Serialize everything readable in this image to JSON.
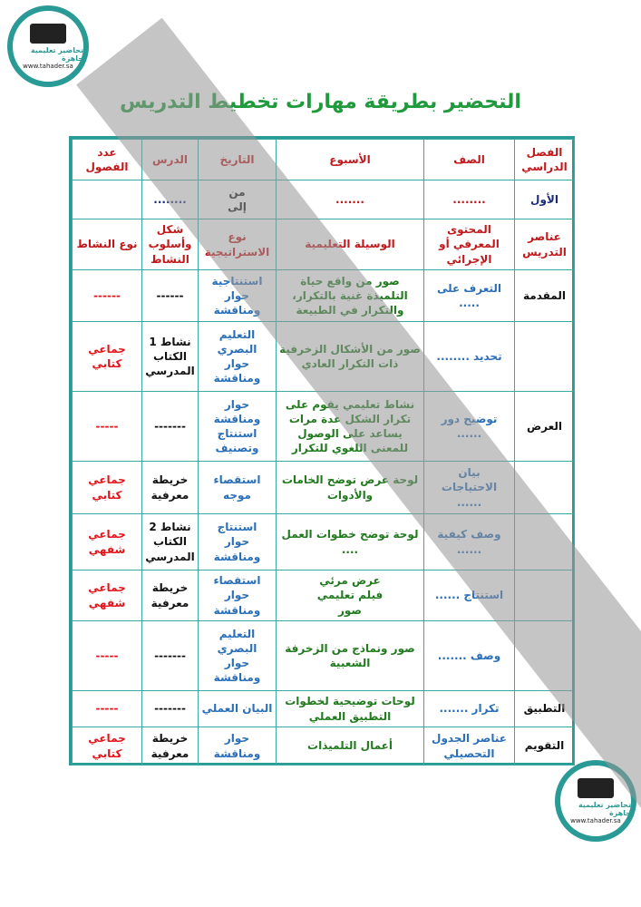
{
  "title": "التحضير بطريقة مهارات تخطيط التدريس",
  "logo": {
    "name": "تحاضير تعليمية جاهزة",
    "url": "www.tahader.sa"
  },
  "colors": {
    "accent": "#2a9a96",
    "title": "#1f9a3c",
    "header": "#c0191b",
    "strategy": "#2a6fb8",
    "media": "#227a1f",
    "activity_type": "#e3141a"
  },
  "rows": [
    [
      {
        "t": "الفصل الدراسي",
        "c": "red"
      },
      {
        "t": "الصف",
        "c": "red"
      },
      {
        "t": "الأسبوع",
        "c": "red"
      },
      {
        "t": "التاريخ",
        "c": "red"
      },
      {
        "t": "الدرس",
        "c": "red"
      },
      {
        "t": "عدد الفصول",
        "c": "red"
      }
    ],
    [
      {
        "t": "الأول",
        "c": "navy"
      },
      {
        "t": "........",
        "c": "red"
      },
      {
        "t": ".......",
        "c": "red"
      },
      {
        "t": "من\nإلى",
        "c": "dark"
      },
      {
        "t": "........",
        "c": "navy"
      },
      {
        "t": "",
        "c": "dark"
      }
    ],
    [
      {
        "t": "عناصر التدريس",
        "c": "red"
      },
      {
        "t": "المحتوى المعرفي أو الإجرائي",
        "c": "red"
      },
      {
        "t": "الوسيلة التعليمية",
        "c": "red"
      },
      {
        "t": "نوع الاستراتيجية",
        "c": "red"
      },
      {
        "t": "شكل وأسلوب النشاط",
        "c": "red"
      },
      {
        "t": "نوع النشاط",
        "c": "red"
      }
    ],
    [
      {
        "t": "المقدمة",
        "c": "dark"
      },
      {
        "t": "التعرف على\n.....",
        "c": "blue"
      },
      {
        "t": "صور من واقع حياة التلميذة غنية بالتكرار، والتكرار في الطبيعة",
        "c": "green"
      },
      {
        "t": "استنتاجية\nحوار\nومناقشة",
        "c": "blue"
      },
      {
        "t": "------",
        "c": "dark"
      },
      {
        "t": "------",
        "c": "bred"
      }
    ],
    [
      {
        "t": "",
        "c": "dark"
      },
      {
        "t": "تحديد ........",
        "c": "blue"
      },
      {
        "t": "صور من الأشكال الزخرفية ذات التكرار العادي",
        "c": "green"
      },
      {
        "t": "التعليم البصري\nحوار\nومناقشة",
        "c": "blue"
      },
      {
        "t": "نشاط 1\nالكتاب\nالمدرسي",
        "c": "dark"
      },
      {
        "t": "جماعي\nكتابي",
        "c": "bred"
      }
    ],
    [
      {
        "t": "العرض",
        "c": "dark"
      },
      {
        "t": "توضيح دور\n......",
        "c": "blue"
      },
      {
        "t": "نشاط تعليمي يقوم على تكرار الشكل عدة مرات يساعد على الوصول للمعنى اللغوي للتكرار",
        "c": "green"
      },
      {
        "t": "حوار\nومناقشة\nاستنتاج\nوتصنيف",
        "c": "blue"
      },
      {
        "t": "-------",
        "c": "dark"
      },
      {
        "t": "-----",
        "c": "bred"
      }
    ],
    [
      {
        "t": "",
        "c": "dark"
      },
      {
        "t": "بيان\nالاحتياجات\n......",
        "c": "blue"
      },
      {
        "t": "لوحة عرض توضح الخامات والأدوات",
        "c": "green"
      },
      {
        "t": "استقصاء\nموجه",
        "c": "blue"
      },
      {
        "t": "خريطة\nمعرفية",
        "c": "dark"
      },
      {
        "t": "جماعي\nكتابي",
        "c": "bred"
      }
    ],
    [
      {
        "t": "",
        "c": "dark"
      },
      {
        "t": "وصف كيفية\n......",
        "c": "blue"
      },
      {
        "t": "لوحة توضح خطوات العمل\n....",
        "c": "green"
      },
      {
        "t": "استنتاج\nحوار\nومناقشة",
        "c": "blue"
      },
      {
        "t": "نشاط 2\nالكتاب\nالمدرسي",
        "c": "dark"
      },
      {
        "t": "جماعي\nشفهي",
        "c": "bred"
      }
    ],
    [
      {
        "t": "",
        "c": "dark"
      },
      {
        "t": "استنتاج ......",
        "c": "blue"
      },
      {
        "t": "عرض مرئي\nفيلم تعليمي\nصور",
        "c": "green"
      },
      {
        "t": "استقصاء\nحوار\nومناقشة",
        "c": "blue"
      },
      {
        "t": "خريطة\nمعرفية",
        "c": "dark"
      },
      {
        "t": "جماعي\nشفهي",
        "c": "bred"
      }
    ],
    [
      {
        "t": "",
        "c": "dark"
      },
      {
        "t": "وصف .......",
        "c": "blue"
      },
      {
        "t": "صور ونماذج من الزخرفة الشعبية",
        "c": "green"
      },
      {
        "t": "التعليم\nالبصري\nحوار\nومناقشة",
        "c": "blue"
      },
      {
        "t": "-------",
        "c": "dark"
      },
      {
        "t": "-----",
        "c": "bred"
      }
    ],
    [
      {
        "t": "التطبيق",
        "c": "dark"
      },
      {
        "t": "تكرار .......",
        "c": "blue"
      },
      {
        "t": "لوحات توضيحية لخطوات التطبيق العملي",
        "c": "green"
      },
      {
        "t": "البيان العملي",
        "c": "blue"
      },
      {
        "t": "-------",
        "c": "dark"
      },
      {
        "t": "-----",
        "c": "bred"
      }
    ],
    [
      {
        "t": "التقويم",
        "c": "dark"
      },
      {
        "t": "عناصر الجدول التحصيلي",
        "c": "blue"
      },
      {
        "t": "أعمال التلميذات",
        "c": "green"
      },
      {
        "t": "حوار\nومناقشة",
        "c": "blue"
      },
      {
        "t": "خريطة\nمعرفية",
        "c": "dark"
      },
      {
        "t": "جماعي\nكتابي",
        "c": "bred"
      }
    ]
  ]
}
